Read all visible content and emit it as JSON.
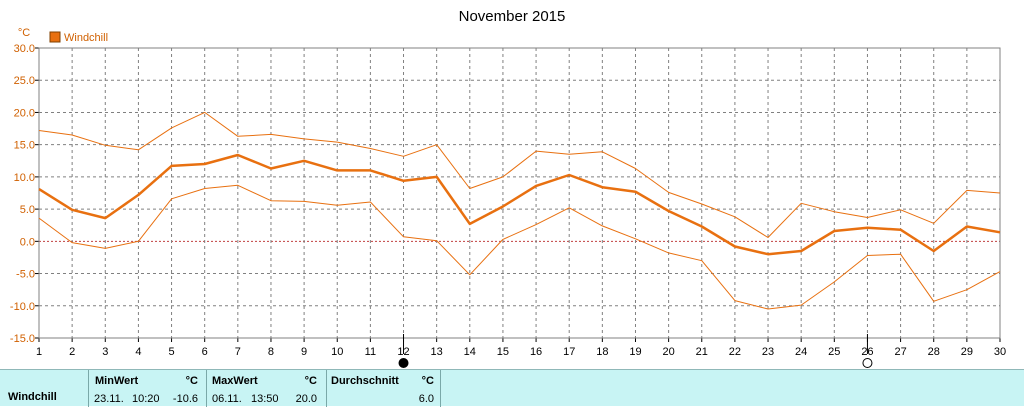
{
  "chart_data": {
    "type": "line",
    "title": "November 2015",
    "unit": "°C",
    "legend": {
      "label": "Windchill",
      "color": "#e87010",
      "placement": "top-left"
    },
    "x": [
      1,
      2,
      3,
      4,
      5,
      6,
      7,
      8,
      9,
      10,
      11,
      12,
      13,
      14,
      15,
      16,
      17,
      18,
      19,
      20,
      21,
      22,
      23,
      24,
      25,
      26,
      27,
      28,
      29,
      30
    ],
    "xticks": [
      "1",
      "2",
      "3",
      "4",
      "5",
      "6",
      "7",
      "8",
      "9",
      "10",
      "11",
      "12",
      "13",
      "14",
      "15",
      "16",
      "17",
      "18",
      "19",
      "20",
      "21",
      "22",
      "23",
      "24",
      "25",
      "26",
      "27",
      "28",
      "29",
      "30"
    ],
    "ylim": [
      -15,
      30
    ],
    "yticks": [
      "30.0",
      "25.0",
      "20.0",
      "15.0",
      "10.0",
      "5.0",
      "0.0",
      "-5.0",
      "-10.0",
      "-15.0"
    ],
    "ytick_values": [
      30,
      25,
      20,
      15,
      10,
      5,
      0,
      -5,
      -10,
      -15
    ],
    "grid": true,
    "zero_line": true,
    "series": [
      {
        "role": "max",
        "values": [
          17.2,
          16.5,
          14.9,
          14.2,
          17.6,
          20.0,
          16.3,
          16.6,
          15.9,
          15.4,
          14.4,
          13.2,
          15.0,
          8.2,
          10.0,
          14.0,
          13.5,
          13.9,
          11.3,
          7.6,
          5.8,
          3.8,
          0.6,
          5.9,
          4.6,
          3.7,
          4.9,
          2.8,
          7.9,
          7.5
        ]
      },
      {
        "role": "avg",
        "values": [
          8.1,
          4.9,
          3.6,
          7.2,
          11.7,
          12.0,
          13.4,
          11.3,
          12.5,
          11.0,
          11.0,
          9.4,
          10.0,
          2.7,
          5.4,
          8.6,
          10.3,
          8.4,
          7.7,
          4.7,
          2.3,
          -0.8,
          -2.0,
          -1.5,
          1.6,
          2.1,
          1.8,
          -1.5,
          2.3,
          1.4
        ]
      },
      {
        "role": "min",
        "values": [
          3.6,
          -0.2,
          -1.1,
          0.0,
          6.6,
          8.2,
          8.7,
          6.3,
          6.2,
          5.6,
          6.1,
          0.7,
          0.1,
          -5.2,
          0.3,
          2.6,
          5.2,
          2.4,
          0.4,
          -1.8,
          -3.0,
          -9.2,
          -10.5,
          -9.9,
          -6.3,
          -2.2,
          -2.0,
          -9.3,
          -7.5,
          -4.7
        ]
      }
    ],
    "moon_phases": [
      {
        "day": 12,
        "phase": "new-moon",
        "icon": "new-moon-icon"
      },
      {
        "day": 26,
        "phase": "full-moon",
        "icon": "full-moon-icon"
      }
    ]
  },
  "stats": {
    "label": "Windchill",
    "min": {
      "header": "MinWert",
      "unit": "°C",
      "date": "23.11.",
      "time": "10:20",
      "value": "-10.6"
    },
    "max": {
      "header": "MaxWert",
      "unit": "°C",
      "date": "06.11.",
      "time": "13:50",
      "value": "20.0"
    },
    "avg": {
      "header": "Durchschnitt",
      "unit": "°C",
      "value": "6.0"
    }
  }
}
